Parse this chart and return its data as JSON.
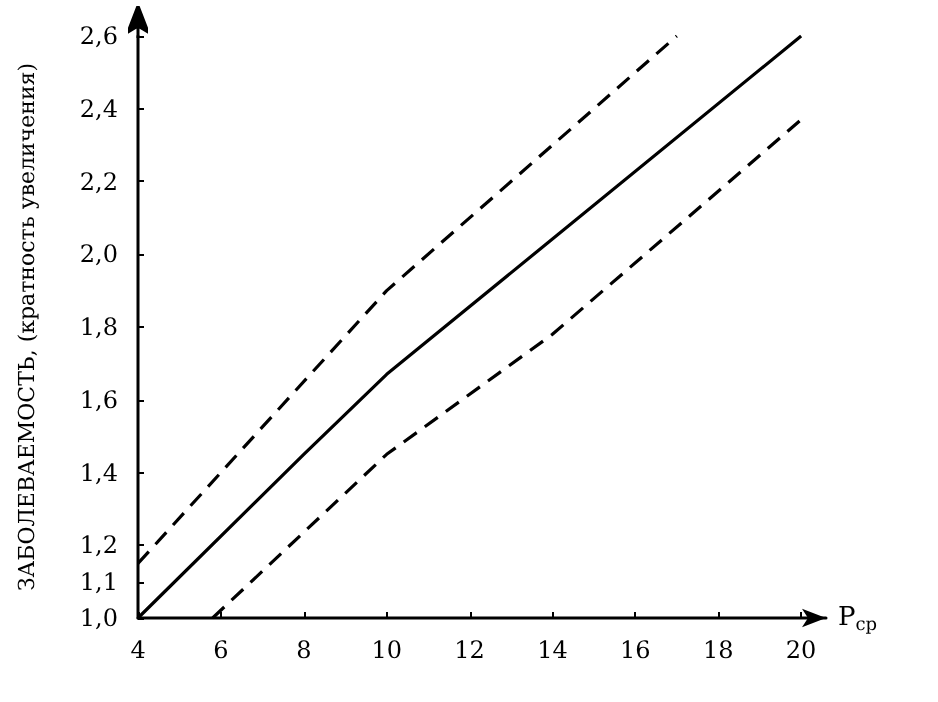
{
  "chart_data": {
    "type": "line",
    "xlabel": "Р$_{ср}$",
    "ylabel": "ЗАБОЛЕВАЕМОСТЬ, (кратность увеличения)",
    "xlim": [
      4,
      20.6
    ],
    "ylim": [
      1.0,
      2.6
    ],
    "xticks": [
      4,
      6,
      8,
      10,
      12,
      14,
      16,
      18,
      20
    ],
    "yticks": [
      {
        "value": 1.0,
        "label": "1,0"
      },
      {
        "value": 1.1,
        "label": "1,1"
      },
      {
        "value": 1.2,
        "label": "1,2"
      },
      {
        "value": 1.4,
        "label": "1,4"
      },
      {
        "value": 1.6,
        "label": "1,6"
      },
      {
        "value": 1.8,
        "label": "1,8"
      },
      {
        "value": 2.0,
        "label": "2,0"
      },
      {
        "value": 2.2,
        "label": "2,2"
      },
      {
        "value": 2.4,
        "label": "2,4"
      },
      {
        "value": 2.6,
        "label": "2,6"
      }
    ],
    "grid": false,
    "marker": "none",
    "series": [
      {
        "color": "#000000",
        "line_style": "dashed",
        "x": [
          4,
          10,
          17
        ],
        "values": [
          1.15,
          1.9,
          2.6
        ]
      },
      {
        "color": "#000000",
        "line_style": "solid",
        "x": [
          4,
          8,
          10,
          20
        ],
        "values": [
          1.0,
          1.45,
          1.67,
          2.6
        ]
      },
      {
        "color": "#000000",
        "line_style": "dashed",
        "x": [
          5.8,
          10,
          14,
          20
        ],
        "values": [
          1.0,
          1.45,
          1.78,
          2.37
        ]
      }
    ]
  }
}
